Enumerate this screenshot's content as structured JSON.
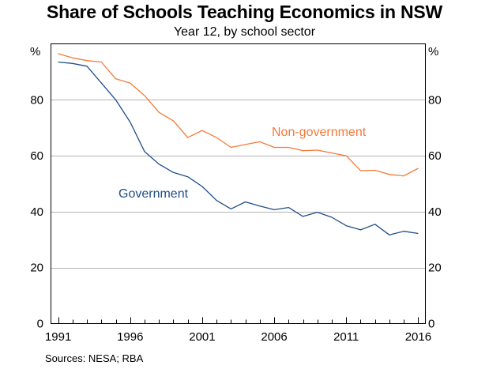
{
  "chart_data": {
    "type": "line",
    "title": "Share of Schools Teaching Economics in NSW",
    "subtitle": "Year 12, by school sector",
    "ylabel_left": "%",
    "ylabel_right": "%",
    "ylim": [
      0,
      100
    ],
    "yticks": [
      0,
      20,
      40,
      60,
      80
    ],
    "xlim": [
      1990.5,
      2016.5
    ],
    "xticks": [
      1991,
      1996,
      2001,
      2006,
      2011,
      2016
    ],
    "grid": true,
    "source": "Sources:   NESA; RBA",
    "x": [
      1991,
      1992,
      1993,
      1994,
      1995,
      1996,
      1997,
      1998,
      1999,
      2000,
      2001,
      2002,
      2003,
      2004,
      2005,
      2006,
      2007,
      2008,
      2009,
      2010,
      2011,
      2012,
      2013,
      2014,
      2015,
      2016
    ],
    "series": [
      {
        "name": "Government",
        "label": "Government",
        "color": "#1f4e86",
        "values": [
          93.5,
          93,
          92,
          86,
          80,
          72,
          61.5,
          57,
          54,
          52.5,
          49,
          44,
          41,
          43.5,
          42,
          40.7,
          41.5,
          38.3,
          39.8,
          38,
          35,
          33.5,
          35.5,
          31.7,
          33,
          32.2
        ]
      },
      {
        "name": "Non-government",
        "label": "Non-government",
        "color": "#f4793a",
        "values": [
          96.5,
          95,
          94,
          93.5,
          87.5,
          86,
          81.5,
          75.5,
          72.5,
          66.5,
          69,
          66.5,
          63,
          64,
          65,
          63,
          63,
          61.8,
          62,
          61,
          60,
          54.7,
          54.8,
          53.3,
          52.8,
          55.5
        ]
      }
    ]
  }
}
